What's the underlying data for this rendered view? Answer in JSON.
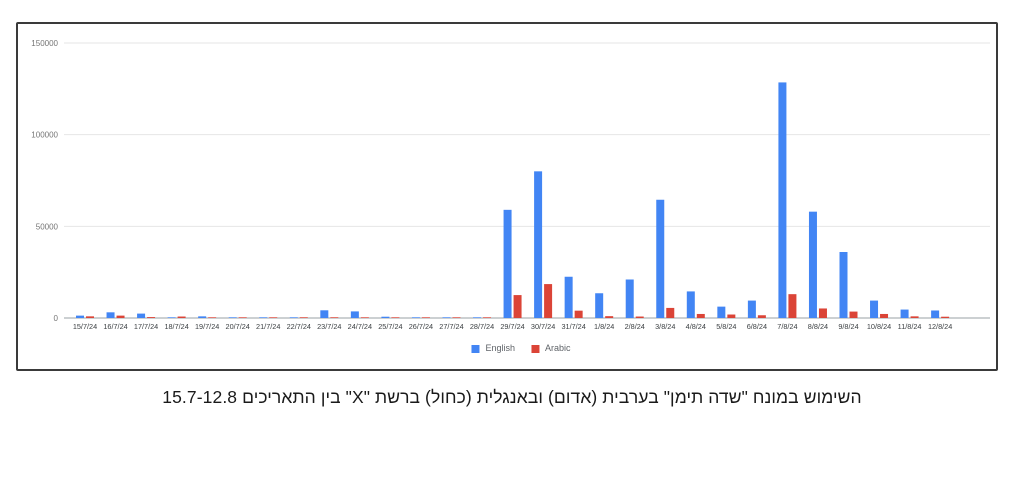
{
  "figure": {
    "caption": "השימוש במונח \"שדה תימן\" בערבית (אדום) ובאנגלית (כחול) ברשת \"X\" בין התאריכים 15.7-12.8"
  },
  "legend": {
    "english_label": "English",
    "arabic_label": "Arabic"
  },
  "chart_data": {
    "type": "bar",
    "title": "",
    "xlabel": "",
    "ylabel": "",
    "ylim": [
      0,
      150000
    ],
    "yticks": [
      0,
      50000,
      100000,
      150000
    ],
    "grid": true,
    "legend_position": "bottom",
    "categories": [
      "15/7/24",
      "16/7/24",
      "17/7/24",
      "18/7/24",
      "19/7/24",
      "20/7/24",
      "21/7/24",
      "22/7/24",
      "23/7/24",
      "24/7/24",
      "25/7/24",
      "26/7/24",
      "27/7/24",
      "28/7/24",
      "29/7/24",
      "30/7/24",
      "31/7/24",
      "1/8/24",
      "2/8/24",
      "3/8/24",
      "4/8/24",
      "5/8/24",
      "6/8/24",
      "7/8/24",
      "8/8/24",
      "9/8/24",
      "10/8/24",
      "11/8/24",
      "12/8/24"
    ],
    "series": [
      {
        "name": "English",
        "color": "#4285f4",
        "values": [
          1300,
          3100,
          2400,
          200,
          900,
          150,
          150,
          250,
          4200,
          3600,
          700,
          100,
          100,
          200,
          59000,
          80000,
          22500,
          13500,
          21000,
          64500,
          14500,
          6200,
          9500,
          128500,
          58000,
          36000,
          9500,
          4600,
          4100
        ]
      },
      {
        "name": "Arabic",
        "color": "#db4437",
        "values": [
          900,
          1300,
          500,
          800,
          300,
          300,
          300,
          400,
          400,
          300,
          200,
          150,
          150,
          250,
          12500,
          18500,
          4000,
          1000,
          800,
          5500,
          2200,
          1900,
          1500,
          13000,
          5200,
          3500,
          2200,
          900,
          700
        ]
      }
    ]
  }
}
